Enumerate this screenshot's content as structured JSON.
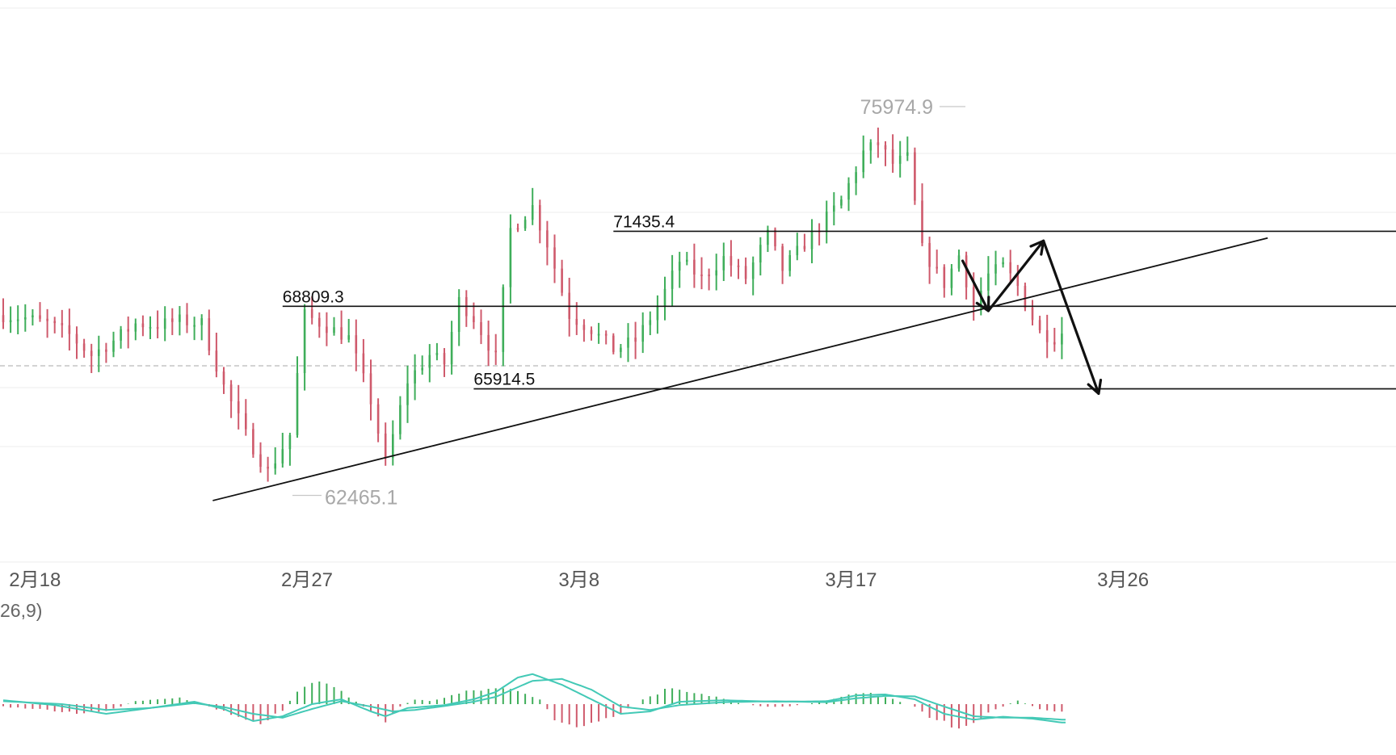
{
  "chart_data": {
    "type": "candlestick",
    "x_ticks": [
      "2月18",
      "2月27",
      "3月8",
      "3月17",
      "3月26"
    ],
    "x_tick_index": [
      3,
      40,
      77,
      114,
      151
    ],
    "colors": {
      "up": "#3fae5a",
      "down": "#cf5a6c",
      "macd_line": "#43c9b6",
      "grid": "#eeeeee",
      "text_dark": "#111111",
      "text_grey": "#a8a8a8"
    },
    "price_levels": [
      {
        "label": "75974.9",
        "value": 75974.9,
        "kind": "max"
      },
      {
        "label": "71435.4",
        "value": 71435.4,
        "kind": "horizontal-line",
        "from_index": 83
      },
      {
        "label": "68809.3",
        "value": 68809.3,
        "kind": "horizontal-line",
        "from_index": 38
      },
      {
        "label": "65914.5",
        "value": 65914.5,
        "kind": "horizontal-line",
        "from_index": 64
      },
      {
        "label": "62465.1",
        "value": 62465.1,
        "kind": "min"
      }
    ],
    "trendline": {
      "from": {
        "index": 28.5,
        "price": 62000
      },
      "to": {
        "index": 172,
        "price": 71200
      }
    },
    "arrows": [
      {
        "from": {
          "index": 130.5,
          "price": 70400
        },
        "to": {
          "index": 134,
          "price": 68650
        }
      },
      {
        "from": {
          "index": 134,
          "price": 68650
        },
        "to": {
          "index": 141.5,
          "price": 71100
        }
      },
      {
        "from": {
          "index": 141.5,
          "price": 71100
        },
        "to": {
          "index": 149,
          "price": 65750
        }
      }
    ],
    "macd_label": "26,9)",
    "close_path": [
      [
        0,
        68500
      ],
      [
        3,
        68400
      ],
      [
        6,
        68200
      ],
      [
        9,
        67800
      ],
      [
        12,
        67100
      ],
      [
        15,
        67600
      ],
      [
        18,
        68200
      ],
      [
        21,
        68150
      ],
      [
        24,
        68300
      ],
      [
        27,
        68200
      ],
      [
        30,
        66000
      ],
      [
        33,
        64300
      ],
      [
        36,
        63000
      ],
      [
        39,
        64300
      ],
      [
        41,
        68500
      ],
      [
        44,
        68100
      ],
      [
        47,
        67700
      ],
      [
        50,
        65500
      ],
      [
        52,
        63300
      ],
      [
        55,
        66200
      ],
      [
        58,
        67100
      ],
      [
        60,
        66800
      ],
      [
        62,
        69000
      ],
      [
        64,
        68400
      ],
      [
        67,
        67000
      ],
      [
        69,
        71500
      ],
      [
        72,
        72300
      ],
      [
        74,
        71000
      ],
      [
        77,
        68500
      ],
      [
        80,
        68000
      ],
      [
        83,
        67300
      ],
      [
        86,
        67600
      ],
      [
        89,
        68800
      ],
      [
        92,
        70400
      ],
      [
        95,
        69800
      ],
      [
        98,
        70500
      ],
      [
        101,
        69800
      ],
      [
        104,
        71300
      ],
      [
        106,
        70100
      ],
      [
        108,
        70700
      ],
      [
        111,
        71600
      ],
      [
        114,
        72500
      ],
      [
        117,
        74200
      ],
      [
        119,
        74500
      ],
      [
        121,
        73800
      ],
      [
        123,
        74000
      ],
      [
        125,
        70800
      ],
      [
        128,
        69600
      ],
      [
        130,
        70600
      ],
      [
        132,
        68800
      ],
      [
        134,
        69900
      ],
      [
        136,
        70200
      ],
      [
        138,
        69500
      ],
      [
        140,
        68400
      ],
      [
        141,
        67900
      ],
      [
        143,
        67700
      ],
      [
        144,
        67900
      ]
    ],
    "n_candles": 145,
    "macd_hist_path": [
      [
        0,
        -50
      ],
      [
        4,
        -100
      ],
      [
        10,
        -180
      ],
      [
        14,
        -150
      ],
      [
        18,
        60
      ],
      [
        24,
        120
      ],
      [
        28,
        -50
      ],
      [
        32,
        -250
      ],
      [
        35,
        -380
      ],
      [
        38,
        -150
      ],
      [
        40,
        300
      ],
      [
        43,
        450
      ],
      [
        46,
        250
      ],
      [
        50,
        -150
      ],
      [
        52,
        -350
      ],
      [
        54,
        -50
      ],
      [
        56,
        100
      ],
      [
        58,
        60
      ],
      [
        61,
        180
      ],
      [
        64,
        280
      ],
      [
        67,
        320
      ],
      [
        70,
        300
      ],
      [
        73,
        100
      ],
      [
        75,
        -300
      ],
      [
        78,
        -500
      ],
      [
        81,
        -400
      ],
      [
        84,
        -200
      ],
      [
        87,
        100
      ],
      [
        91,
        350
      ],
      [
        94,
        250
      ],
      [
        97,
        150
      ],
      [
        100,
        20
      ],
      [
        104,
        -60
      ],
      [
        107,
        -40
      ],
      [
        110,
        20
      ],
      [
        114,
        160
      ],
      [
        118,
        230
      ],
      [
        121,
        100
      ],
      [
        124,
        -50
      ],
      [
        127,
        -350
      ],
      [
        130,
        -500
      ],
      [
        133,
        -300
      ],
      [
        135,
        -100
      ],
      [
        138,
        70
      ],
      [
        141,
        -100
      ],
      [
        144,
        -180
      ]
    ],
    "macd_line_path": [
      [
        0,
        80
      ],
      [
        7,
        -20
      ],
      [
        14,
        -200
      ],
      [
        20,
        -80
      ],
      [
        26,
        50
      ],
      [
        30,
        -100
      ],
      [
        34,
        -350
      ],
      [
        38,
        -250
      ],
      [
        42,
        0
      ],
      [
        46,
        100
      ],
      [
        50,
        -150
      ],
      [
        52,
        -250
      ],
      [
        55,
        -80
      ],
      [
        60,
        -20
      ],
      [
        64,
        100
      ],
      [
        67,
        250
      ],
      [
        70,
        550
      ],
      [
        72,
        620
      ],
      [
        76,
        400
      ],
      [
        80,
        100
      ],
      [
        84,
        -200
      ],
      [
        88,
        -150
      ],
      [
        92,
        50
      ],
      [
        98,
        80
      ],
      [
        105,
        50
      ],
      [
        112,
        60
      ],
      [
        116,
        180
      ],
      [
        120,
        200
      ],
      [
        124,
        100
      ],
      [
        128,
        -200
      ],
      [
        132,
        -320
      ],
      [
        136,
        -260
      ],
      [
        140,
        -300
      ],
      [
        144,
        -380
      ]
    ],
    "macd_signal_path": [
      [
        0,
        60
      ],
      [
        8,
        0
      ],
      [
        14,
        -120
      ],
      [
        20,
        -80
      ],
      [
        26,
        20
      ],
      [
        30,
        -60
      ],
      [
        34,
        -200
      ],
      [
        38,
        -280
      ],
      [
        42,
        -100
      ],
      [
        46,
        60
      ],
      [
        50,
        -50
      ],
      [
        53,
        -150
      ],
      [
        56,
        -120
      ],
      [
        60,
        -40
      ],
      [
        64,
        50
      ],
      [
        67,
        150
      ],
      [
        70,
        350
      ],
      [
        72,
        480
      ],
      [
        76,
        520
      ],
      [
        80,
        300
      ],
      [
        84,
        -50
      ],
      [
        88,
        -120
      ],
      [
        92,
        -20
      ],
      [
        98,
        40
      ],
      [
        105,
        60
      ],
      [
        112,
        40
      ],
      [
        116,
        120
      ],
      [
        120,
        170
      ],
      [
        124,
        160
      ],
      [
        128,
        -50
      ],
      [
        132,
        -250
      ],
      [
        136,
        -280
      ],
      [
        140,
        -280
      ],
      [
        144,
        -320
      ]
    ]
  }
}
